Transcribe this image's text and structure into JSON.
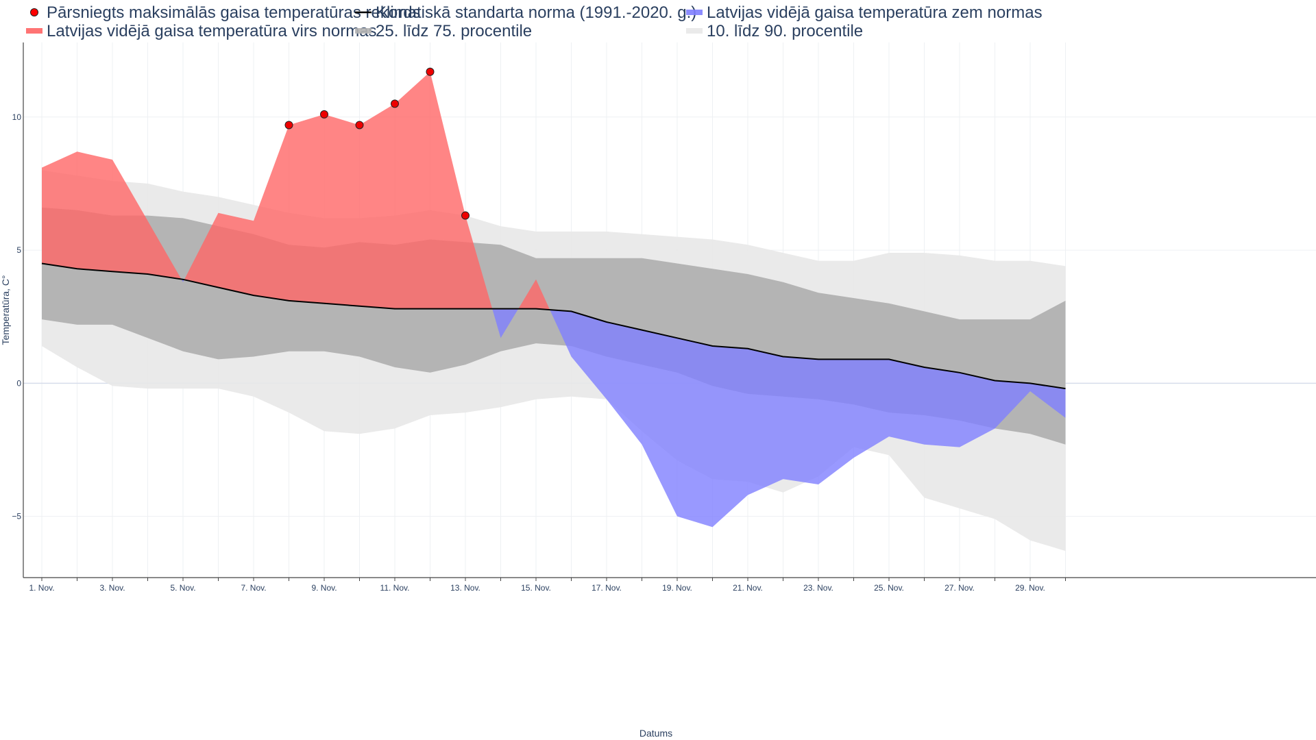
{
  "chart_data": {
    "type": "area",
    "title": "",
    "xlabel": "Datums",
    "ylabel": "Temperatūra, C°",
    "ylim": [
      -7.3,
      12.8
    ],
    "yticks": [
      -5,
      0,
      5,
      10
    ],
    "ytick_labels": [
      "−5",
      "0",
      "5",
      "10"
    ],
    "x": [
      1,
      2,
      3,
      4,
      5,
      6,
      7,
      8,
      9,
      10,
      11,
      12,
      13,
      14,
      15,
      16,
      17,
      18,
      19,
      20,
      21,
      22,
      23,
      24,
      25,
      26,
      27,
      28,
      29,
      30
    ],
    "x_tick_values": [
      1,
      3,
      5,
      7,
      9,
      11,
      13,
      15,
      17,
      19,
      21,
      23,
      25,
      27,
      29
    ],
    "x_tick_labels": [
      "1. Nov.",
      "3. Nov.",
      "5. Nov.",
      "7. Nov.",
      "9. Nov.",
      "11. Nov.",
      "13. Nov.",
      "15. Nov.",
      "17. Nov.",
      "19. Nov.",
      "21. Nov.",
      "23. Nov.",
      "25. Nov.",
      "27. Nov.",
      "29. Nov."
    ],
    "legend": [
      {
        "key": "record",
        "label": "Pārsniegts maksimālās gaisa temperatūras rekords",
        "color": "#ff0000",
        "marker": "circle"
      },
      {
        "key": "norm",
        "label": "Klimatiskā standarta norma (1991.-2020. g.)",
        "color": "#000000",
        "marker": "line"
      },
      {
        "key": "below",
        "label": "Latvijas vidējā gaisa temperatūra zem normas",
        "color": "#8080ff",
        "marker": "line"
      },
      {
        "key": "above",
        "label": "Latvijas vidējā gaisa temperatūra virs normas",
        "color": "#ff6666",
        "marker": "line"
      },
      {
        "key": "p25_75",
        "label": "25. līdz 75. procentile",
        "color": "#b4b4b4",
        "marker": "line"
      },
      {
        "key": "p10_90",
        "label": "10. līdz 90. procentile",
        "color": "#e8e8e8",
        "marker": "line"
      }
    ],
    "series": [
      {
        "name": "Klimatiskā standarta norma (1991.-2020. g.)",
        "key": "norm",
        "values": [
          4.5,
          4.3,
          4.2,
          4.1,
          3.9,
          3.6,
          3.3,
          3.1,
          3.0,
          2.9,
          2.8,
          2.8,
          2.8,
          2.8,
          2.8,
          2.7,
          2.3,
          2.0,
          1.7,
          1.4,
          1.3,
          1.0,
          0.9,
          0.9,
          0.9,
          0.6,
          0.4,
          0.1,
          0.0,
          -0.2
        ]
      },
      {
        "name": "Latvijas vidējā gaisa temperatūra",
        "key": "actual",
        "values": [
          8.1,
          8.7,
          8.4,
          6.1,
          3.8,
          6.4,
          6.1,
          9.7,
          10.1,
          9.7,
          10.5,
          11.7,
          6.3,
          1.7,
          3.9,
          1.0,
          -0.6,
          -2.3,
          -5.0,
          -5.4,
          -4.2,
          -3.6,
          -3.8,
          -2.8,
          -2.0,
          -2.3,
          -2.4,
          -1.7,
          -0.3,
          -1.3
        ]
      },
      {
        "name": "25. procentile",
        "key": "p25",
        "values": [
          2.4,
          2.2,
          2.2,
          1.7,
          1.2,
          0.9,
          1.0,
          1.2,
          1.2,
          1.0,
          0.6,
          0.4,
          0.7,
          1.2,
          1.5,
          1.4,
          1.0,
          0.7,
          0.4,
          -0.1,
          -0.4,
          -0.5,
          -0.6,
          -0.8,
          -1.1,
          -1.2,
          -1.4,
          -1.7,
          -1.9,
          -2.3
        ]
      },
      {
        "name": "75. procentile",
        "key": "p75",
        "values": [
          6.6,
          6.5,
          6.3,
          6.3,
          6.2,
          5.9,
          5.6,
          5.2,
          5.1,
          5.3,
          5.2,
          5.4,
          5.3,
          5.2,
          4.7,
          4.7,
          4.7,
          4.7,
          4.5,
          4.3,
          4.1,
          3.8,
          3.4,
          3.2,
          3.0,
          2.7,
          2.4,
          2.4,
          2.4,
          3.1
        ]
      },
      {
        "name": "10. procentile",
        "key": "p10",
        "values": [
          1.4,
          0.6,
          -0.1,
          -0.2,
          -0.2,
          -0.2,
          -0.5,
          -1.1,
          -1.8,
          -1.9,
          -1.7,
          -1.2,
          -1.1,
          -0.9,
          -0.6,
          -0.5,
          -0.6,
          -1.8,
          -2.9,
          -3.6,
          -3.7,
          -4.1,
          -3.5,
          -2.4,
          -2.7,
          -4.3,
          -4.7,
          -5.1,
          -5.9,
          -6.3
        ]
      },
      {
        "name": "90. procentile",
        "key": "p90",
        "values": [
          8.0,
          7.8,
          7.6,
          7.5,
          7.2,
          7.0,
          6.7,
          6.4,
          6.2,
          6.2,
          6.3,
          6.5,
          6.3,
          5.9,
          5.7,
          5.7,
          5.7,
          5.6,
          5.5,
          5.4,
          5.2,
          4.9,
          4.6,
          4.6,
          4.9,
          4.9,
          4.8,
          4.6,
          4.6,
          4.4
        ]
      }
    ],
    "record_days": [
      8,
      9,
      10,
      11,
      12,
      13
    ],
    "record_values": [
      9.7,
      10.1,
      9.7,
      10.5,
      11.7,
      6.3
    ],
    "colors": {
      "above": "#ff6666",
      "below": "#8080ff",
      "p25_75": "#b4b4b4",
      "p10_90": "#e8e8e8",
      "norm": "#000000",
      "record_fill": "#ee0000",
      "grid": "#eef0f3",
      "zero_line": "#d6ddeb",
      "axis": "#444444"
    }
  }
}
